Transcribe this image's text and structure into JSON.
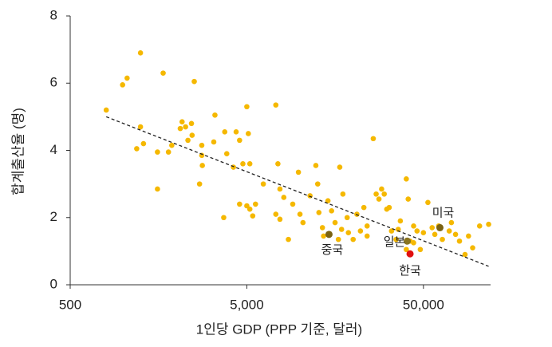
{
  "chart_data": {
    "type": "scatter",
    "x_label": "1인당 GDP (PPP 기준, 달러)",
    "y_label": "합계출산율 (명)",
    "xscale": "log",
    "xlim": [
      500,
      120000
    ],
    "xticks": [
      500,
      {
        "value": 5000,
        "label": "5,000"
      },
      {
        "value": 50000,
        "label": "50,000"
      }
    ],
    "ylim": [
      0,
      8
    ],
    "yticks": [
      0,
      2,
      4,
      6,
      8
    ],
    "color": "#f5b800",
    "points": {
      "x": [
        800,
        1250,
        1050,
        990,
        1680,
        2520,
        1250,
        1300,
        1190,
        1560,
        1800,
        1880,
        2150,
        2250,
        2430,
        2100,
        2450,
        2320,
        2780,
        2780,
        2800,
        3300,
        3250,
        3750,
        4350,
        4550,
        3850,
        4200,
        4750,
        5200,
        1560,
        2700,
        5000,
        7300,
        5100,
        3700,
        4550,
        5000,
        5200,
        5400,
        5600,
        6200,
        7500,
        7700,
        7300,
        8100,
        7700,
        8600,
        9100,
        9800,
        10000,
        10400,
        11400,
        12300,
        12600,
        12800,
        13400,
        13600,
        14400,
        15100,
        15800,
        16500,
        16800,
        17200,
        17500,
        18500,
        18800,
        20000,
        21000,
        22000,
        23000,
        24000,
        24000,
        26000,
        27000,
        28000,
        29000,
        30000,
        31000,
        32000,
        33000,
        35000,
        36000,
        37000,
        40000,
        41000,
        42000,
        44000,
        46000,
        48000,
        50000,
        53000,
        56000,
        58000,
        64000,
        72000,
        76000,
        80000,
        90000,
        104000,
        117000,
        86000,
        95000,
        61000,
        70000,
        44000,
        40000
      ],
      "y": [
        5.2,
        6.9,
        6.15,
        5.95,
        6.3,
        6.05,
        4.7,
        4.2,
        4.05,
        3.95,
        3.95,
        4.15,
        4.85,
        4.7,
        4.8,
        4.65,
        4.45,
        4.3,
        4.15,
        3.85,
        3.55,
        5.05,
        4.25,
        4.55,
        4.55,
        4.3,
        3.9,
        3.5,
        3.6,
        3.6,
        2.85,
        3.0,
        5.3,
        5.35,
        4.5,
        2.0,
        2.4,
        2.35,
        2.25,
        2.05,
        2.4,
        3.0,
        3.6,
        2.85,
        2.1,
        2.6,
        1.95,
        1.35,
        2.4,
        3.35,
        2.1,
        1.85,
        2.65,
        3.55,
        3.0,
        2.15,
        1.7,
        1.45,
        2.5,
        2.2,
        1.85,
        1.35,
        3.5,
        1.65,
        2.7,
        2.0,
        1.55,
        1.35,
        2.1,
        1.6,
        2.3,
        1.75,
        1.45,
        4.35,
        2.7,
        2.55,
        2.85,
        2.7,
        2.25,
        2.3,
        1.6,
        1.35,
        1.65,
        1.9,
        3.15,
        2.55,
        1.3,
        1.75,
        1.6,
        1.05,
        1.55,
        2.45,
        1.7,
        1.5,
        1.35,
        1.85,
        1.5,
        1.3,
        1.45,
        1.75,
        1.8,
        0.9,
        1.1,
        1.75,
        1.6,
        1.25,
        1.05
      ]
    },
    "highlights": [
      {
        "label": "중국",
        "x": 14600,
        "y": 1.5,
        "color": "#7a6212"
      },
      {
        "label": "일본",
        "x": 40500,
        "y": 1.3,
        "color": "#8a7420"
      },
      {
        "label": "한국",
        "x": 42000,
        "y": 0.92,
        "color": "#e01010"
      },
      {
        "label": "미국",
        "x": 62000,
        "y": 1.7,
        "color": "#7a6212"
      }
    ],
    "trend": {
      "x": [
        800,
        117000
      ],
      "y": [
        5.0,
        0.55
      ]
    }
  }
}
